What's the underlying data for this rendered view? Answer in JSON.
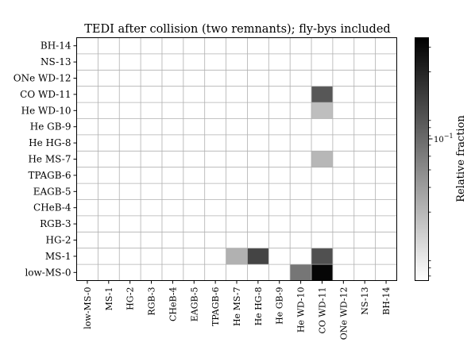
{
  "chart_data": {
    "type": "heatmap",
    "title": "TEDI after collision (two remnants); fly-bys included",
    "x_categories": [
      "low-MS-0",
      "MS-1",
      "HG-2",
      "RGB-3",
      "CHeB-4",
      "EAGB-5",
      "TPAGB-6",
      "He MS-7",
      "He HG-8",
      "He GB-9",
      "He WD-10",
      "CO WD-11",
      "ONe WD-12",
      "NS-13",
      "BH-14"
    ],
    "y_categories": [
      "low-MS-0",
      "MS-1",
      "HG-2",
      "RGB-3",
      "CHeB-4",
      "EAGB-5",
      "TPAGB-6",
      "He MS-7",
      "He HG-8",
      "He GB-9",
      "He WD-10",
      "CO WD-11",
      "ONe WD-12",
      "NS-13",
      "BH-14"
    ],
    "cells": [
      {
        "x": "CO WD-11",
        "y": "low-MS-0",
        "value": 0.32
      },
      {
        "x": "He WD-10",
        "y": "low-MS-0",
        "value": 0.055
      },
      {
        "x": "He HG-8",
        "y": "MS-1",
        "value": 0.12
      },
      {
        "x": "He MS-7",
        "y": "MS-1",
        "value": 0.022
      },
      {
        "x": "CO WD-11",
        "y": "MS-1",
        "value": 0.1
      },
      {
        "x": "CO WD-11",
        "y": "He MS-7",
        "value": 0.02
      },
      {
        "x": "CO WD-11",
        "y": "He WD-10",
        "value": 0.018
      },
      {
        "x": "CO WD-11",
        "y": "CO WD-11",
        "value": 0.09
      }
    ],
    "colorbar": {
      "label": "Relative fraction",
      "scale": "log",
      "range": [
        0.0065,
        0.35
      ],
      "ticks": [
        {
          "value": 0.1,
          "label": "10^-1"
        }
      ],
      "colors": [
        "#ffffff",
        "#000000"
      ]
    },
    "grid": true
  }
}
